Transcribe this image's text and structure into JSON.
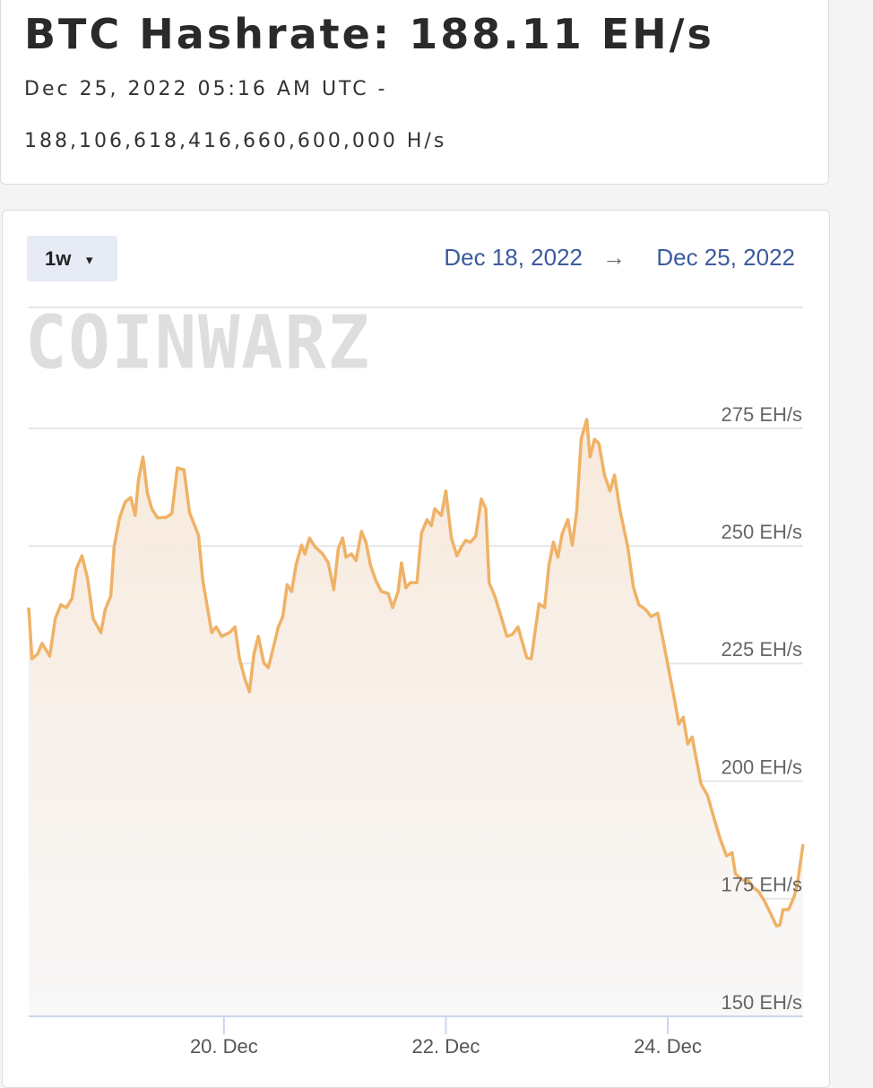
{
  "header": {
    "title": "BTC Hashrate: 188.11 EH/s",
    "date": "Dec 25, 2022 05:16 AM UTC -",
    "hashrate": "188,106,618,416,660,600,000 H/s"
  },
  "controls": {
    "range_button": "1w",
    "dropdown_icon": "▾",
    "start_date": "Dec 18, 2022",
    "arrow": "→",
    "end_date": "Dec 25, 2022"
  },
  "chart_data": {
    "type": "line",
    "watermark": "COINWARZ",
    "color": "#efb266",
    "grid": true,
    "xlim": [
      18.24,
      25.22
    ],
    "xticks": [
      {
        "value": 20,
        "label": "20. Dec"
      },
      {
        "value": 22,
        "label": "22. Dec"
      },
      {
        "value": 24,
        "label": "24. Dec"
      }
    ],
    "ylim": [
      150,
      300
    ],
    "yticks": [
      {
        "value": 150,
        "label": "150 EH/s"
      },
      {
        "value": 175,
        "label": "175 EH/s"
      },
      {
        "value": 200,
        "label": "200 EH/s"
      },
      {
        "value": 225,
        "label": "225 EH/s"
      },
      {
        "value": 250,
        "label": "250 EH/s"
      },
      {
        "value": 275,
        "label": "275 EH/s"
      }
    ],
    "x": [
      18.24,
      18.27,
      18.32,
      18.36,
      18.43,
      18.48,
      18.53,
      18.58,
      18.63,
      18.67,
      18.72,
      18.77,
      18.82,
      18.89,
      18.93,
      18.98,
      19.01,
      19.06,
      19.11,
      19.16,
      19.2,
      19.23,
      19.27,
      19.31,
      19.35,
      19.4,
      19.48,
      19.53,
      19.58,
      19.64,
      19.69,
      19.77,
      19.81,
      19.89,
      19.93,
      19.98,
      20.05,
      20.1,
      20.14,
      20.19,
      20.23,
      20.27,
      20.31,
      20.36,
      20.4,
      20.45,
      20.49,
      20.53,
      20.57,
      20.61,
      20.65,
      20.7,
      20.73,
      20.77,
      20.82,
      20.89,
      20.94,
      20.99,
      21.03,
      21.07,
      21.1,
      21.15,
      21.19,
      21.24,
      21.28,
      21.32,
      21.37,
      21.42,
      21.48,
      21.52,
      21.57,
      21.6,
      21.64,
      21.68,
      21.74,
      21.78,
      21.83,
      21.87,
      21.9,
      21.96,
      22.0,
      22.05,
      22.1,
      22.14,
      22.18,
      22.22,
      22.27,
      22.32,
      22.36,
      22.39,
      22.44,
      22.49,
      22.55,
      22.6,
      22.65,
      22.73,
      22.77,
      22.81,
      22.84,
      22.89,
      22.93,
      22.97,
      23.01,
      23.05,
      23.1,
      23.14,
      23.18,
      23.22,
      23.27,
      23.3,
      23.34,
      23.38,
      23.43,
      23.48,
      23.52,
      23.57,
      23.64,
      23.69,
      23.74,
      23.8,
      23.85,
      23.91,
      23.96,
      24.01,
      24.06,
      24.1,
      24.14,
      24.18,
      24.22,
      24.27,
      24.3,
      24.36,
      24.41,
      24.47,
      24.53,
      24.58,
      24.61,
      24.67,
      24.73,
      24.77,
      24.82,
      24.87,
      24.93,
      24.98,
      25.01,
      25.04,
      25.09,
      25.14,
      25.17,
      25.22
    ],
    "values": [
      236.9,
      226.0,
      227.0,
      229.3,
      226.6,
      234.6,
      237.5,
      236.9,
      238.8,
      245.1,
      247.9,
      243.2,
      234.6,
      231.6,
      236.5,
      239.4,
      249.8,
      256.0,
      259.4,
      260.3,
      256.5,
      264.1,
      268.9,
      261.3,
      257.9,
      256.0,
      256.1,
      256.9,
      266.6,
      266.2,
      257.1,
      252.3,
      242.6,
      231.6,
      232.8,
      230.8,
      231.6,
      232.8,
      226.0,
      221.6,
      219.0,
      227.0,
      230.8,
      225.1,
      224.1,
      228.9,
      232.8,
      235.0,
      241.8,
      240.3,
      246.0,
      250.2,
      248.3,
      251.7,
      249.8,
      248.3,
      246.4,
      240.7,
      249.4,
      251.7,
      247.6,
      248.3,
      246.9,
      253.1,
      250.8,
      246.0,
      242.6,
      240.3,
      239.9,
      236.9,
      240.3,
      246.4,
      241.1,
      242.2,
      242.2,
      252.7,
      255.6,
      254.3,
      257.9,
      256.5,
      261.7,
      251.7,
      247.9,
      249.8,
      251.2,
      250.8,
      252.1,
      260.0,
      257.9,
      242.2,
      239.4,
      235.6,
      230.8,
      231.2,
      232.8,
      226.2,
      226.0,
      232.8,
      237.7,
      236.9,
      246.0,
      250.8,
      247.6,
      252.7,
      255.6,
      250.2,
      257.5,
      272.7,
      276.9,
      268.9,
      272.7,
      271.8,
      265.1,
      261.7,
      265.1,
      257.5,
      249.8,
      241.3,
      237.5,
      236.5,
      235.0,
      235.7,
      229.8,
      223.6,
      217.5,
      212.1,
      213.6,
      207.9,
      209.4,
      203.2,
      199.4,
      196.9,
      192.7,
      187.9,
      184.1,
      184.8,
      180.3,
      179.0,
      178.8,
      177.4,
      176.5,
      174.6,
      171.7,
      169.2,
      169.4,
      172.7,
      172.7,
      175.5,
      178.4,
      186.6
    ]
  }
}
